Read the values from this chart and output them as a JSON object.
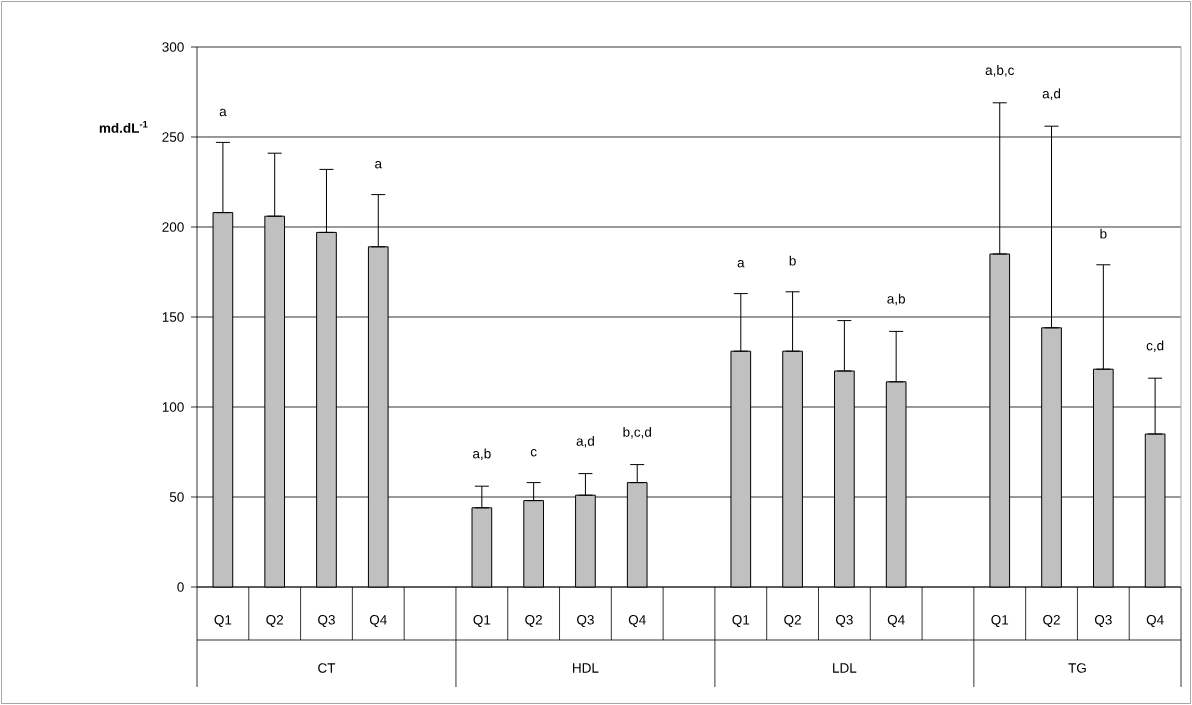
{
  "chart_data": {
    "type": "bar",
    "ylabel": "md.dL$^{-1}$",
    "categories": [
      "CT",
      "HDL",
      "LDL",
      "TG"
    ],
    "series": [
      {
        "name": "Q1",
        "color": "#c0c0c0",
        "values": [
          208,
          44,
          131,
          185
        ],
        "errors": [
          [
            208,
            247
          ],
          [
            44,
            56
          ],
          [
            131,
            163
          ],
          [
            185,
            269
          ]
        ]
      },
      {
        "name": "Q2",
        "color": "#c0c0c0",
        "values": [
          206,
          48,
          131,
          144
        ],
        "errors": [
          [
            206,
            241
          ],
          [
            48,
            58
          ],
          [
            131,
            164
          ],
          [
            144,
            256
          ]
        ]
      },
      {
        "name": "Q3",
        "color": "#c0c0c0",
        "values": [
          197,
          51,
          120,
          121
        ],
        "errors": [
          [
            197,
            232
          ],
          [
            51,
            63
          ],
          [
            120,
            148
          ],
          [
            121,
            179
          ]
        ]
      },
      {
        "name": "Q4",
        "color": "#c0c0c0",
        "values": [
          189,
          58,
          114,
          85
        ],
        "errors": [
          [
            189,
            218
          ],
          [
            58,
            68
          ],
          [
            114,
            142
          ],
          [
            85,
            116
          ]
        ]
      }
    ],
    "annotations": [
      "a",
      "a",
      "a,b",
      "c",
      "a,d",
      "b,c,d",
      "a",
      "b",
      "a,b",
      "a,b,c",
      "a,d",
      "b",
      "c,d"
    ],
    "ylim": [
      0,
      300
    ],
    "yticks": [
      0,
      50,
      100,
      150,
      200,
      250,
      300
    ],
    "grid": "y"
  }
}
